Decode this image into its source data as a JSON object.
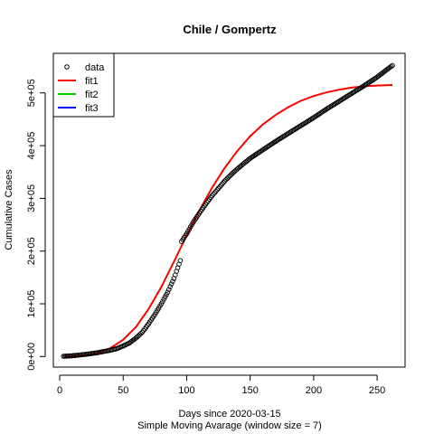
{
  "chart_data": {
    "type": "scatter",
    "title": "Chile / Gompertz",
    "xlabel": "Days since 2020-03-15",
    "xlabel2": "Simple Moving Avarage (window size = 7)",
    "ylabel": "Cumulative Cases",
    "xlim": [
      -5,
      272
    ],
    "ylim": [
      -20000,
      575000
    ],
    "xticks": [
      0,
      50,
      100,
      150,
      200,
      250
    ],
    "yticks": [
      {
        "v": 0,
        "label": "0e+00"
      },
      {
        "v": 100000,
        "label": "1e+05"
      },
      {
        "v": 200000,
        "label": "2e+05"
      },
      {
        "v": 300000,
        "label": "3e+05"
      },
      {
        "v": 400000,
        "label": "4e+05"
      },
      {
        "v": 500000,
        "label": "5e+05"
      }
    ],
    "legend": {
      "position": "top-left",
      "entries": [
        {
          "name": "data",
          "kind": "point",
          "color": "#000000"
        },
        {
          "name": "fit1",
          "kind": "line",
          "color": "#ff0000"
        },
        {
          "name": "fit2",
          "kind": "line",
          "color": "#00cd00"
        },
        {
          "name": "fit3",
          "kind": "line",
          "color": "#0000ff"
        }
      ]
    },
    "series": [
      {
        "name": "data",
        "kind": "points",
        "color": "#000000",
        "x_range": [
          3,
          262
        ],
        "points": [
          [
            3,
            500
          ],
          [
            10,
            1500
          ],
          [
            20,
            4000
          ],
          [
            30,
            7500
          ],
          [
            40,
            12000
          ],
          [
            45,
            15000
          ],
          [
            50,
            20000
          ],
          [
            55,
            26000
          ],
          [
            60,
            35000
          ],
          [
            65,
            46000
          ],
          [
            70,
            62000
          ],
          [
            75,
            80000
          ],
          [
            80,
            100000
          ],
          [
            85,
            122000
          ],
          [
            90,
            148000
          ],
          [
            95,
            182000
          ],
          [
            96,
            218000
          ],
          [
            100,
            233000
          ],
          [
            105,
            254000
          ],
          [
            110,
            272000
          ],
          [
            115,
            289000
          ],
          [
            120,
            305000
          ],
          [
            125,
            319000
          ],
          [
            130,
            333000
          ],
          [
            135,
            345000
          ],
          [
            140,
            356000
          ],
          [
            145,
            366000
          ],
          [
            150,
            376000
          ],
          [
            160,
            392000
          ],
          [
            170,
            408000
          ],
          [
            180,
            423000
          ],
          [
            190,
            438000
          ],
          [
            200,
            453000
          ],
          [
            210,
            469000
          ],
          [
            220,
            484000
          ],
          [
            230,
            499000
          ],
          [
            240,
            514000
          ],
          [
            250,
            530000
          ],
          [
            262,
            552000
          ]
        ]
      },
      {
        "name": "fit1",
        "kind": "line",
        "color": "#ff0000",
        "points": [
          [
            3,
            0
          ],
          [
            10,
            500
          ],
          [
            20,
            2500
          ],
          [
            30,
            7000
          ],
          [
            40,
            16000
          ],
          [
            50,
            32000
          ],
          [
            60,
            56000
          ],
          [
            70,
            90000
          ],
          [
            80,
            132000
          ],
          [
            90,
            180000
          ],
          [
            100,
            230000
          ],
          [
            110,
            277000
          ],
          [
            120,
            320000
          ],
          [
            130,
            358000
          ],
          [
            140,
            390000
          ],
          [
            150,
            418000
          ],
          [
            160,
            440000
          ],
          [
            170,
            458000
          ],
          [
            180,
            473000
          ],
          [
            190,
            485000
          ],
          [
            200,
            494000
          ],
          [
            210,
            501000
          ],
          [
            220,
            506000
          ],
          [
            230,
            510000
          ],
          [
            240,
            512500
          ],
          [
            250,
            514000
          ],
          [
            262,
            515000
          ]
        ]
      }
    ]
  }
}
